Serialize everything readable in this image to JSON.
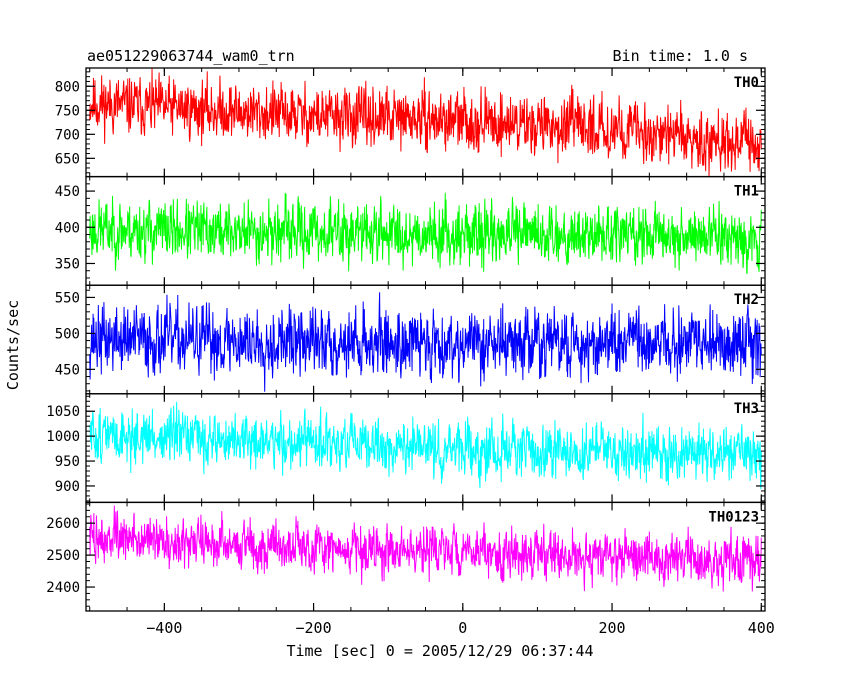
{
  "chart_data": {
    "type": "line",
    "title": "ae051229063744_wam0_trn",
    "subtitle": "Bin time: 1.0 s",
    "xlabel": "Time [sec] 0 = 2005/12/29 06:37:44",
    "ylabel": "Counts/sec",
    "xlim": [
      -505,
      405
    ],
    "x_ticks": [
      -400,
      -200,
      0,
      200,
      400
    ],
    "x_tick_labels": [
      "−400",
      "−200",
      "0",
      "200",
      "400"
    ],
    "panels": [
      {
        "name": "TH0",
        "color": "#ff0000",
        "ylim": [
          612,
          838
        ],
        "y_ticks": [
          650,
          700,
          750,
          800
        ],
        "y_tick_labels": [
          "650",
          "700",
          "750",
          "800"
        ],
        "x_range": [
          -500,
          400
        ],
        "trend": [
          [
            -500,
            765
          ],
          [
            -200,
            738
          ],
          [
            0,
            728
          ],
          [
            200,
            712
          ],
          [
            400,
            678
          ]
        ],
        "noise": 38,
        "seed": 11
      },
      {
        "name": "TH1",
        "color": "#00ff00",
        "ylim": [
          320,
          470
        ],
        "y_ticks": [
          350,
          400,
          450
        ],
        "y_tick_labels": [
          "350",
          "400",
          "450"
        ],
        "x_range": [
          -500,
          400
        ],
        "trend": [
          [
            -500,
            397
          ],
          [
            -200,
            393
          ],
          [
            0,
            391
          ],
          [
            200,
            390
          ],
          [
            400,
            388
          ]
        ],
        "noise": 26,
        "seed": 23
      },
      {
        "name": "TH2",
        "color": "#0000ff",
        "ylim": [
          416,
          567
        ],
        "y_ticks": [
          450,
          500,
          550
        ],
        "y_tick_labels": [
          "450",
          "500",
          "550"
        ],
        "x_range": [
          -500,
          400
        ],
        "trend": [
          [
            -500,
            492
          ],
          [
            -200,
            488
          ],
          [
            0,
            487
          ],
          [
            200,
            486
          ],
          [
            400,
            485
          ]
        ],
        "noise": 30,
        "seed": 37
      },
      {
        "name": "TH3",
        "color": "#00ffff",
        "ylim": [
          867,
          1085
        ],
        "y_ticks": [
          900,
          950,
          1000,
          1050
        ],
        "y_tick_labels": [
          "900",
          "950",
          "1000",
          "1050"
        ],
        "x_range": [
          -500,
          400
        ],
        "trend": [
          [
            -500,
            1002
          ],
          [
            -200,
            985
          ],
          [
            0,
            972
          ],
          [
            200,
            968
          ],
          [
            400,
            962
          ]
        ],
        "noise": 34,
        "seed": 51
      },
      {
        "name": "TH0123",
        "color": "#ff00ff",
        "ylim": [
          2325,
          2665
        ],
        "y_ticks": [
          2400,
          2500,
          2600
        ],
        "y_tick_labels": [
          "2400",
          "2500",
          "2600"
        ],
        "x_range": [
          -500,
          400
        ],
        "trend": [
          [
            -500,
            2555
          ],
          [
            -200,
            2525
          ],
          [
            0,
            2508
          ],
          [
            200,
            2496
          ],
          [
            400,
            2480
          ]
        ],
        "noise": 48,
        "seed": 73
      }
    ]
  }
}
